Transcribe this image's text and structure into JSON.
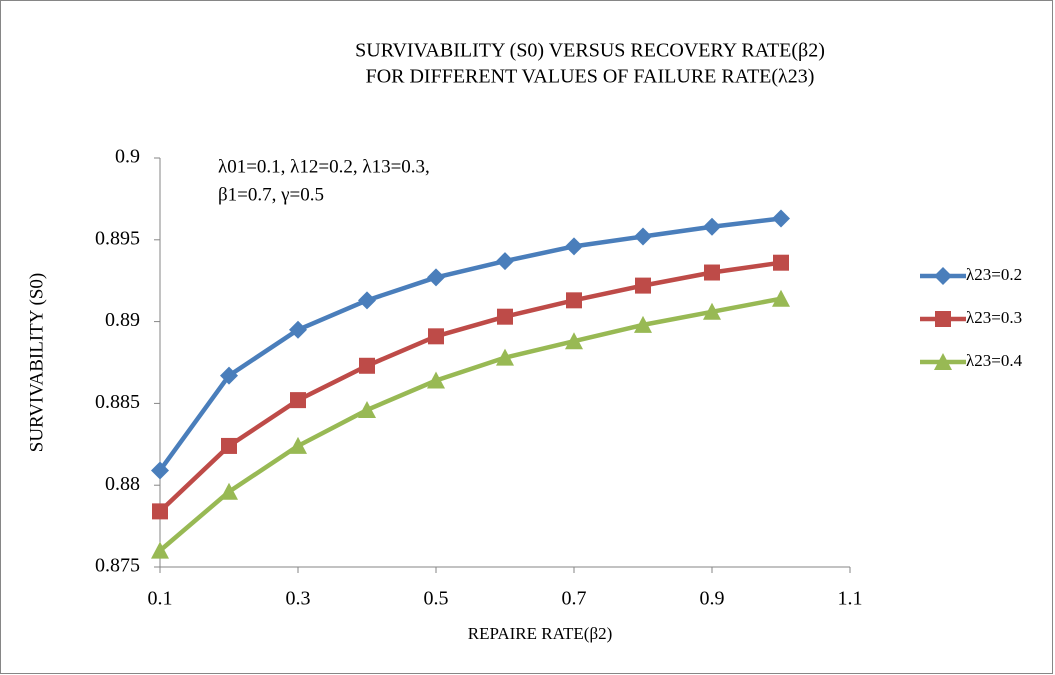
{
  "chart_data": {
    "type": "line",
    "title": [
      "SURVIVABILITY (S0) VERSUS RECOVERY RATE(β2)",
      "FOR DIFFERENT VALUES OF FAILURE RATE(λ23)"
    ],
    "annotation": [
      "λ01=0.1, λ12=0.2, λ13=0.3,",
      "β1=0.7, γ=0.5"
    ],
    "x_label": "REPAIRE RATE(β2)",
    "y_label": "SURVIVABILITY (S0)",
    "x": [
      0.1,
      0.2,
      0.3,
      0.4,
      0.5,
      0.6,
      0.7,
      0.8,
      0.9,
      1.0
    ],
    "series": [
      {
        "name": "λ23=0.2",
        "color": "#4a7ebb",
        "marker": "diamond",
        "values": [
          0.8809,
          0.8867,
          0.8895,
          0.8913,
          0.8927,
          0.8937,
          0.8946,
          0.8952,
          0.8958,
          0.8963
        ]
      },
      {
        "name": "λ23=0.3",
        "color": "#be4b48",
        "marker": "square",
        "values": [
          0.8784,
          0.8824,
          0.8852,
          0.8873,
          0.8891,
          0.8903,
          0.8913,
          0.8922,
          0.893,
          0.8936
        ]
      },
      {
        "name": "λ23=0.4",
        "color": "#98b954",
        "marker": "triangle",
        "values": [
          0.876,
          0.8796,
          0.8824,
          0.8846,
          0.8864,
          0.8878,
          0.8888,
          0.8898,
          0.8906,
          0.8914
        ]
      }
    ],
    "xlim": [
      0.1,
      1.1
    ],
    "xticks": [
      0.1,
      0.3,
      0.5,
      0.7,
      0.9,
      1.1
    ],
    "ylim": [
      0.875,
      0.9
    ],
    "yticks": [
      0.875,
      0.88,
      0.885,
      0.89,
      0.895,
      0.9
    ],
    "grid": false,
    "legend": "right"
  }
}
